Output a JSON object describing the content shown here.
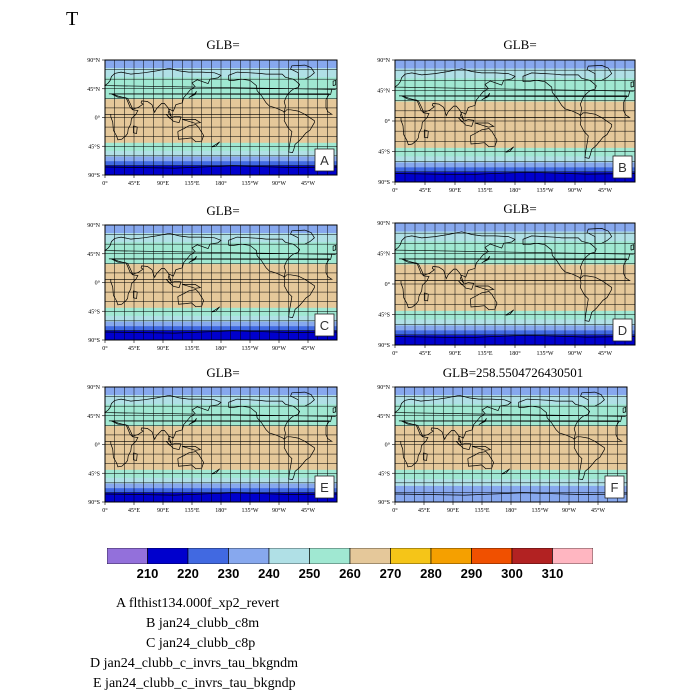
{
  "page": {
    "title": "T"
  },
  "panels": [
    {
      "title": "GLB=",
      "tag": "A"
    },
    {
      "title": "GLB=",
      "tag": "B"
    },
    {
      "title": "GLB=",
      "tag": "C"
    },
    {
      "title": "GLB=",
      "tag": "D"
    },
    {
      "title": "GLB=",
      "tag": "E"
    },
    {
      "title": "GLB=258.5504726430501",
      "tag": "F"
    }
  ],
  "axes": {
    "lat_labels": [
      "90°N",
      "45°N",
      "0°",
      "45°S",
      "90°S"
    ],
    "lon_labels": [
      "0°",
      "45°E",
      "90°E",
      "135°E",
      "180°",
      "135°W",
      "90°W",
      "45°W"
    ]
  },
  "colorbar": {
    "colors": [
      "#9370DB",
      "#0000CD",
      "#4169E1",
      "#87A8EE",
      "#B0E0E6",
      "#A0E8D2",
      "#E5C89A",
      "#F5C518",
      "#F5A000",
      "#F05000",
      "#B22222",
      "#FFB6C1"
    ],
    "labels": [
      "210",
      "220",
      "230",
      "240",
      "250",
      "260",
      "270",
      "280",
      "290",
      "300",
      "310"
    ]
  },
  "legend": [
    "A  flthist134.000f_xp2_revert",
    "B  jan24_clubb_c8m",
    "C  jan24_clubb_c8p",
    "D  jan24_clubb_c_invrs_tau_bkgndm",
    "E  jan24_clubb_c_invrs_tau_bkgndp"
  ]
}
